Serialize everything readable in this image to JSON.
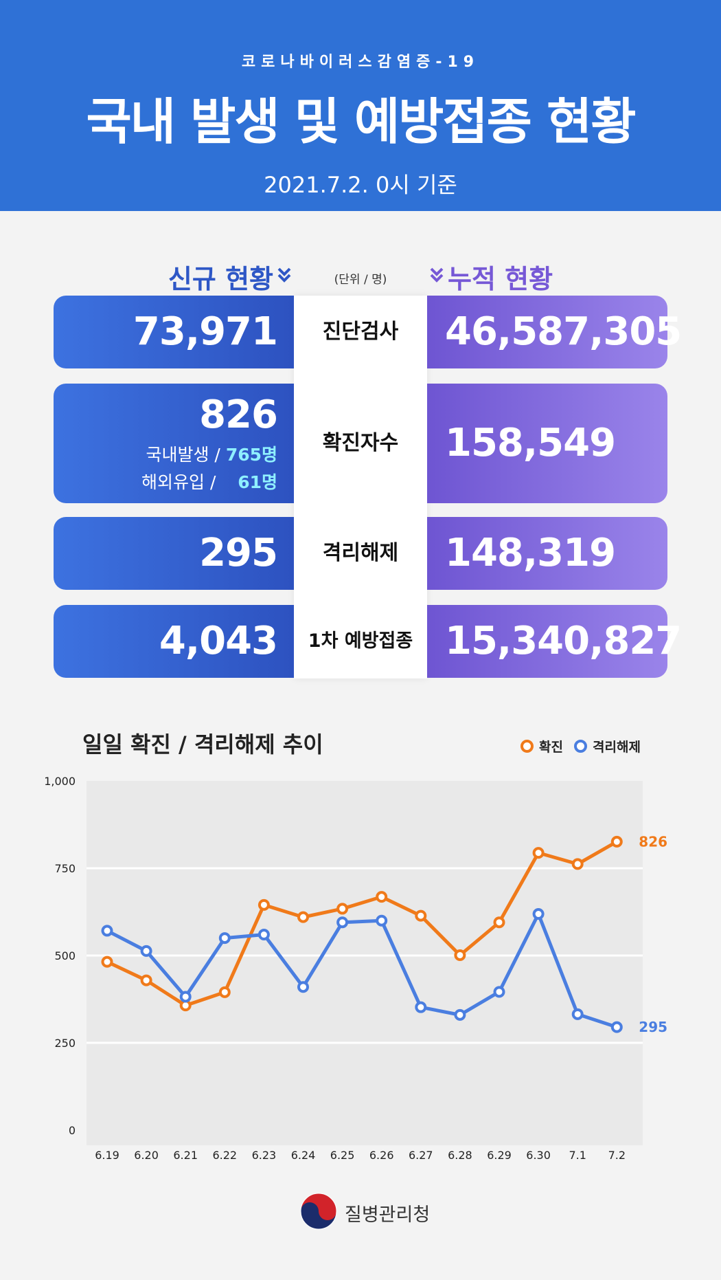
{
  "header": {
    "subtitle": "코로나바이러스감염증-19",
    "title": "국내 발생 및 예방접종 현황",
    "date": "2021.7.2. 0시 기준"
  },
  "columns": {
    "new_label": "신규 현황",
    "unit": "(단위 / 명)",
    "cumulative_label": "누적 현황",
    "chev_icon": "double-chevron-down-icon"
  },
  "rows": [
    {
      "label": "진단검사",
      "new": "73,971",
      "cumulative": "46,587,305"
    },
    {
      "label": "확진자수",
      "new": "826",
      "cumulative": "158,549",
      "breakdown": [
        {
          "name": "국내발생 /",
          "value": "765명"
        },
        {
          "name": "해외유입 /",
          "value": "61명"
        }
      ]
    },
    {
      "label": "격리해제",
      "new": "295",
      "cumulative": "148,319"
    },
    {
      "label": "1차 예방접종",
      "new": "4,043",
      "cumulative": "15,340,827"
    }
  ],
  "colors": {
    "header_bg": "#2f71d6",
    "confirmed": "#f07a1a",
    "released": "#4a7ee0"
  },
  "chart_data": {
    "type": "line",
    "title": "일일 확진 / 격리해제 추이",
    "categories": [
      "6.19",
      "6.20",
      "6.21",
      "6.22",
      "6.23",
      "6.24",
      "6.25",
      "6.26",
      "6.27",
      "6.28",
      "6.29",
      "6.30",
      "7.1",
      "7.2"
    ],
    "series": [
      {
        "name": "확진",
        "color": "#f07a1a",
        "values": [
          482,
          429,
          357,
          395,
          645,
          610,
          634,
          668,
          614,
          501,
          595,
          794,
          762,
          826
        ]
      },
      {
        "name": "격리해제",
        "color": "#4a7ee0",
        "values": [
          571,
          513,
          382,
          550,
          560,
          410,
          595,
          600,
          352,
          330,
          396,
          619,
          332,
          295
        ]
      }
    ],
    "yticks": [
      "1,000",
      "750",
      "500",
      "250",
      "0"
    ],
    "ylim": [
      0,
      1000
    ],
    "end_labels": [
      "826",
      "295"
    ],
    "legend": "top-right",
    "grid": true
  },
  "footer": {
    "agency": "질병관리청",
    "logo_icon": "taegeuk-logo-icon"
  }
}
